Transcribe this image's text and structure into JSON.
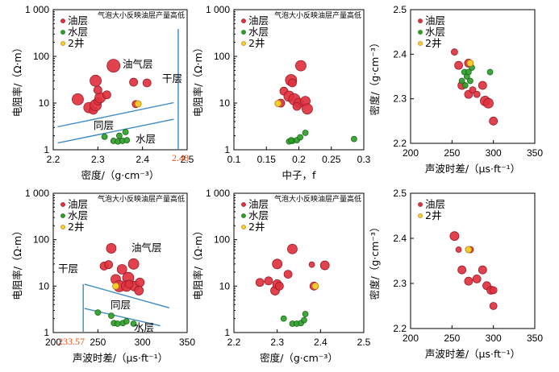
{
  "title": "气泡大小反映油层产量高低",
  "legend": {
    "oil": "油层",
    "water": "水层",
    "well2": "2井"
  },
  "colors": {
    "oil_fill": "#e0323f",
    "oil_stroke": "#9a1b26",
    "water_fill": "#2f9e2a",
    "water_stroke": "#1c6a18",
    "well2_fill": "#f6cc2c",
    "well2_stroke": "#b57a10",
    "boundary": "#3d8bc4",
    "cutoff": "#e8521c"
  },
  "chart_data": [
    {
      "type": "scatter",
      "title": "气泡大小反映油层产量高低",
      "xlabel": "密度/（g·cm⁻³）",
      "ylabel": "电阻率/（Ω·m）",
      "xlim": [
        2.2,
        2.5
      ],
      "ylim": [
        1,
        1000
      ],
      "xscale": "linear",
      "yscale": "log",
      "xticks": [
        2.2,
        2.3,
        2.4,
        2.5
      ],
      "xtick_labels": [
        "2.2",
        "2.3",
        "2.4",
        "2.5"
      ],
      "yticks": [
        1,
        10,
        100,
        1000
      ],
      "ytick_labels": [
        "1",
        "10",
        "100",
        "1 000"
      ],
      "legend": [
        "油层",
        "水层",
        "2井"
      ],
      "zone_labels": [
        "油气层",
        "干层",
        "同层",
        "水层"
      ],
      "cutoff_label": "2.48",
      "cutoff_line": {
        "x": 2.48
      },
      "boundary_lines": [
        {
          "x": [
            2.21,
            2.47
          ],
          "y": [
            3.1,
            10.2
          ]
        },
        {
          "x": [
            2.21,
            2.47
          ],
          "y": [
            1.4,
            4.5
          ]
        }
      ],
      "series": [
        {
          "name": "油层",
          "points": [
            {
              "x": 2.255,
              "y": 12,
              "size": 7
            },
            {
              "x": 2.28,
              "y": 8,
              "size": 6.5
            },
            {
              "x": 2.29,
              "y": 7,
              "size": 5
            },
            {
              "x": 2.295,
              "y": 9,
              "size": 7
            },
            {
              "x": 2.3,
              "y": 11,
              "size": 5
            },
            {
              "x": 2.305,
              "y": 13,
              "size": 6.5
            },
            {
              "x": 2.3,
              "y": 19,
              "size": 5
            },
            {
              "x": 2.295,
              "y": 30,
              "size": 7
            },
            {
              "x": 2.335,
              "y": 63,
              "size": 8
            },
            {
              "x": 2.38,
              "y": 28,
              "size": 5
            },
            {
              "x": 2.41,
              "y": 27,
              "size": 5
            },
            {
              "x": 2.385,
              "y": 9.5,
              "size": 4.5
            },
            {
              "x": 2.32,
              "y": 15,
              "size": 5
            }
          ]
        },
        {
          "name": "水层",
          "points": [
            {
              "x": 2.315,
              "y": 1.9,
              "size": 3.5
            },
            {
              "x": 2.335,
              "y": 1.55,
              "size": 3.5
            },
            {
              "x": 2.345,
              "y": 1.5,
              "size": 3.5
            },
            {
              "x": 2.355,
              "y": 1.55,
              "size": 3.5
            },
            {
              "x": 2.365,
              "y": 1.6,
              "size": 3.5
            },
            {
              "x": 2.362,
              "y": 2.4,
              "size": 3.5
            },
            {
              "x": 2.348,
              "y": 2.0,
              "size": 3.5
            }
          ]
        },
        {
          "name": "2井",
          "points": [
            {
              "x": 2.39,
              "y": 9.6,
              "size": 4
            }
          ]
        }
      ]
    },
    {
      "type": "scatter",
      "title": "气泡大小反映油层产量高低",
      "xlabel": "中子，f",
      "ylabel": "电阻率/（Ω·m）",
      "xlim": [
        0.1,
        0.3
      ],
      "ylim": [
        1,
        1000
      ],
      "xscale": "linear",
      "yscale": "log",
      "xticks": [
        0.1,
        0.15,
        0.2,
        0.25,
        0.3
      ],
      "xtick_labels": [
        "0.1",
        "0.15",
        "0.2",
        "0.25",
        "0.3"
      ],
      "yticks": [
        1,
        10,
        100,
        1000
      ],
      "ytick_labels": [
        "1",
        "10",
        "100",
        "1 000"
      ],
      "legend": [
        "油层",
        "水层",
        "2井"
      ],
      "series": [
        {
          "name": "油层",
          "points": [
            {
              "x": 0.188,
              "y": 31,
              "size": 7
            },
            {
              "x": 0.19,
              "y": 27,
              "size": 5
            },
            {
              "x": 0.203,
              "y": 63,
              "size": 6.5
            },
            {
              "x": 0.177,
              "y": 18,
              "size": 5
            },
            {
              "x": 0.185,
              "y": 14,
              "size": 6.5
            },
            {
              "x": 0.193,
              "y": 12,
              "size": 7
            },
            {
              "x": 0.2,
              "y": 10,
              "size": 6
            },
            {
              "x": 0.21,
              "y": 11,
              "size": 6
            },
            {
              "x": 0.213,
              "y": 7.5,
              "size": 6.5
            },
            {
              "x": 0.197,
              "y": 8.5,
              "size": 5
            },
            {
              "x": 0.172,
              "y": 10,
              "size": 5
            }
          ]
        },
        {
          "name": "水层",
          "points": [
            {
              "x": 0.185,
              "y": 1.5,
              "size": 3.5
            },
            {
              "x": 0.19,
              "y": 1.55,
              "size": 3.5
            },
            {
              "x": 0.197,
              "y": 1.6,
              "size": 3.5
            },
            {
              "x": 0.202,
              "y": 1.85,
              "size": 3.5
            },
            {
              "x": 0.21,
              "y": 2.3,
              "size": 3.5
            },
            {
              "x": 0.285,
              "y": 1.7,
              "size": 3.5
            },
            {
              "x": 0.188,
              "y": 1.6,
              "size": 3.5
            }
          ]
        },
        {
          "name": "2井",
          "points": [
            {
              "x": 0.168,
              "y": 9.8,
              "size": 4
            }
          ]
        }
      ]
    },
    {
      "type": "scatter",
      "xlabel": "声波时差/（μs·ft⁻¹）",
      "ylabel": "密度/（g·cm⁻³）",
      "xlim": [
        200,
        350
      ],
      "ylim": [
        2.2,
        2.5
      ],
      "xscale": "linear",
      "yscale": "linear",
      "xticks": [
        200,
        250,
        300,
        350
      ],
      "xtick_labels": [
        "200",
        "250",
        "300",
        "350"
      ],
      "yticks": [
        2.2,
        2.3,
        2.4,
        2.5
      ],
      "ytick_labels": [
        "2.2",
        "2.3",
        "2.4",
        "2.5"
      ],
      "legend": [
        "油层",
        "水层",
        "2井"
      ],
      "series": [
        {
          "name": "油层",
          "points": [
            {
              "x": 253,
              "y": 2.405,
              "size": 4
            },
            {
              "x": 258,
              "y": 2.375,
              "size": 5
            },
            {
              "x": 262,
              "y": 2.33,
              "size": 5
            },
            {
              "x": 270,
              "y": 2.31,
              "size": 5
            },
            {
              "x": 275,
              "y": 2.32,
              "size": 4
            },
            {
              "x": 280,
              "y": 2.31,
              "size": 4
            },
            {
              "x": 287,
              "y": 2.33,
              "size": 5
            },
            {
              "x": 290,
              "y": 2.295,
              "size": 6
            },
            {
              "x": 294,
              "y": 2.29,
              "size": 6
            },
            {
              "x": 300,
              "y": 2.25,
              "size": 5
            },
            {
              "x": 270,
              "y": 2.38,
              "size": 5
            }
          ]
        },
        {
          "name": "水层",
          "points": [
            {
              "x": 262,
              "y": 2.34,
              "size": 3.5
            },
            {
              "x": 265,
              "y": 2.36,
              "size": 3.5
            },
            {
              "x": 268,
              "y": 2.35,
              "size": 3.5
            },
            {
              "x": 272,
              "y": 2.34,
              "size": 3.5
            },
            {
              "x": 270,
              "y": 2.36,
              "size": 3.5
            },
            {
              "x": 274,
              "y": 2.37,
              "size": 3.5
            },
            {
              "x": 296,
              "y": 2.36,
              "size": 3.5
            },
            {
              "x": 266,
              "y": 2.33,
              "size": 3.5
            }
          ]
        },
        {
          "name": "2井",
          "points": [
            {
              "x": 272,
              "y": 2.38,
              "size": 4
            }
          ]
        }
      ]
    },
    {
      "type": "scatter",
      "title": "气泡大小反映油层产量高低",
      "xlabel": "声波时差/（μs·ft⁻¹）",
      "ylabel": "电阻率/（Ω·m）",
      "xlim": [
        200,
        350
      ],
      "ylim": [
        1,
        1000
      ],
      "xscale": "linear",
      "yscale": "log",
      "xticks": [
        200,
        250,
        300,
        350
      ],
      "xtick_labels": [
        "200",
        "250",
        "300",
        "350"
      ],
      "yticks": [
        1,
        10,
        100,
        1000
      ],
      "ytick_labels": [
        "1",
        "10",
        "100",
        "1 000"
      ],
      "legend": [
        "油层",
        "水层",
        "2井"
      ],
      "zone_labels": [
        "油气层",
        "干层",
        "同层",
        "水层"
      ],
      "cutoff_label": "233.57",
      "cutoff_line": {
        "x": 233.57
      },
      "boundary_lines": [
        {
          "x": [
            235,
            330
          ],
          "y": [
            11,
            3.4
          ]
        },
        {
          "x": [
            235,
            320
          ],
          "y": [
            3.3,
            1.4
          ]
        }
      ],
      "series": [
        {
          "name": "油层",
          "points": [
            {
              "x": 257,
              "y": 27,
              "size": 5
            },
            {
              "x": 262,
              "y": 29,
              "size": 5
            },
            {
              "x": 265,
              "y": 65,
              "size": 6
            },
            {
              "x": 277,
              "y": 23,
              "size": 6
            },
            {
              "x": 284,
              "y": 15,
              "size": 7
            },
            {
              "x": 290,
              "y": 30,
              "size": 6.5
            },
            {
              "x": 270,
              "y": 14,
              "size": 6
            },
            {
              "x": 274,
              "y": 10,
              "size": 7
            },
            {
              "x": 282,
              "y": 10,
              "size": 6.5
            },
            {
              "x": 291,
              "y": 10,
              "size": 6
            },
            {
              "x": 297,
              "y": 12,
              "size": 5.5
            },
            {
              "x": 296,
              "y": 8,
              "size": 5.5
            },
            {
              "x": 285,
              "y": 11,
              "size": 5
            }
          ]
        },
        {
          "name": "水层",
          "points": [
            {
              "x": 250,
              "y": 2.7,
              "size": 3.5
            },
            {
              "x": 265,
              "y": 2.3,
              "size": 3.5
            },
            {
              "x": 268,
              "y": 1.6,
              "size": 3.5
            },
            {
              "x": 272,
              "y": 1.55,
              "size": 3.5
            },
            {
              "x": 278,
              "y": 1.6,
              "size": 3.5
            },
            {
              "x": 282,
              "y": 1.75,
              "size": 3.5
            },
            {
              "x": 290,
              "y": 1.55,
              "size": 3.5
            }
          ]
        },
        {
          "name": "2井",
          "points": [
            {
              "x": 270,
              "y": 10,
              "size": 4
            }
          ]
        }
      ]
    },
    {
      "type": "scatter",
      "title": "气泡大小反映油层产量高低",
      "xlabel": "密度/（g·cm⁻³）",
      "ylabel": "电阻率/（Ω·m）",
      "xlim": [
        2.2,
        2.5
      ],
      "ylim": [
        1,
        1000
      ],
      "xscale": "linear",
      "yscale": "log",
      "xticks": [
        2.2,
        2.3,
        2.4,
        2.5
      ],
      "xtick_labels": [
        "2.2",
        "2.3",
        "2.4",
        "2.5"
      ],
      "yticks": [
        1,
        10,
        100,
        1000
      ],
      "ytick_labels": [
        "1",
        "10",
        "100",
        "1 000"
      ],
      "legend": [
        "油层",
        "水层",
        "2井"
      ],
      "series": [
        {
          "name": "油层",
          "points": [
            {
              "x": 2.26,
              "y": 12,
              "size": 5
            },
            {
              "x": 2.28,
              "y": 13,
              "size": 5
            },
            {
              "x": 2.295,
              "y": 8,
              "size": 5.5
            },
            {
              "x": 2.3,
              "y": 11,
              "size": 5.5
            },
            {
              "x": 2.305,
              "y": 10,
              "size": 5
            },
            {
              "x": 2.3,
              "y": 30,
              "size": 6
            },
            {
              "x": 2.325,
              "y": 18,
              "size": 5
            },
            {
              "x": 2.335,
              "y": 63,
              "size": 6
            },
            {
              "x": 2.38,
              "y": 29,
              "size": 3.5
            },
            {
              "x": 2.41,
              "y": 28,
              "size": 5.5
            },
            {
              "x": 2.385,
              "y": 10,
              "size": 5
            }
          ]
        },
        {
          "name": "水层",
          "points": [
            {
              "x": 2.315,
              "y": 2.0,
              "size": 3.5
            },
            {
              "x": 2.335,
              "y": 1.55,
              "size": 3.5
            },
            {
              "x": 2.345,
              "y": 1.55,
              "size": 3.5
            },
            {
              "x": 2.355,
              "y": 1.6,
              "size": 3.5
            },
            {
              "x": 2.362,
              "y": 1.85,
              "size": 3.5
            },
            {
              "x": 2.365,
              "y": 2.5,
              "size": 3.5
            }
          ]
        },
        {
          "name": "2井",
          "points": [
            {
              "x": 2.388,
              "y": 10,
              "size": 4
            }
          ]
        }
      ]
    },
    {
      "type": "scatter",
      "xlabel": "声波时差/（μs·ft⁻¹）",
      "ylabel": "密度/（g·cm⁻³）",
      "xlim": [
        200,
        350
      ],
      "ylim": [
        2.2,
        2.5
      ],
      "xscale": "linear",
      "yscale": "linear",
      "xticks": [
        200,
        250,
        300,
        350
      ],
      "xtick_labels": [
        "200",
        "250",
        "300",
        "350"
      ],
      "yticks": [
        2.2,
        2.3,
        2.4,
        2.5
      ],
      "ytick_labels": [
        "2.2",
        "2.3",
        "2.4",
        "2.5"
      ],
      "legend": [
        "油层",
        "2井"
      ],
      "series": [
        {
          "name": "油层",
          "points": [
            {
              "x": 253,
              "y": 2.405,
              "size": 5.5
            },
            {
              "x": 258,
              "y": 2.375,
              "size": 3.5
            },
            {
              "x": 262,
              "y": 2.33,
              "size": 5
            },
            {
              "x": 270,
              "y": 2.305,
              "size": 5
            },
            {
              "x": 272,
              "y": 2.375,
              "size": 4
            },
            {
              "x": 280,
              "y": 2.31,
              "size": 5
            },
            {
              "x": 287,
              "y": 2.33,
              "size": 5
            },
            {
              "x": 292,
              "y": 2.295,
              "size": 5
            },
            {
              "x": 297,
              "y": 2.285,
              "size": 5
            },
            {
              "x": 300,
              "y": 2.285,
              "size": 4.5
            },
            {
              "x": 300,
              "y": 2.25,
              "size": 4.5
            }
          ]
        },
        {
          "name": "2井",
          "points": [
            {
              "x": 270,
              "y": 2.375,
              "size": 4
            }
          ]
        }
      ]
    }
  ]
}
